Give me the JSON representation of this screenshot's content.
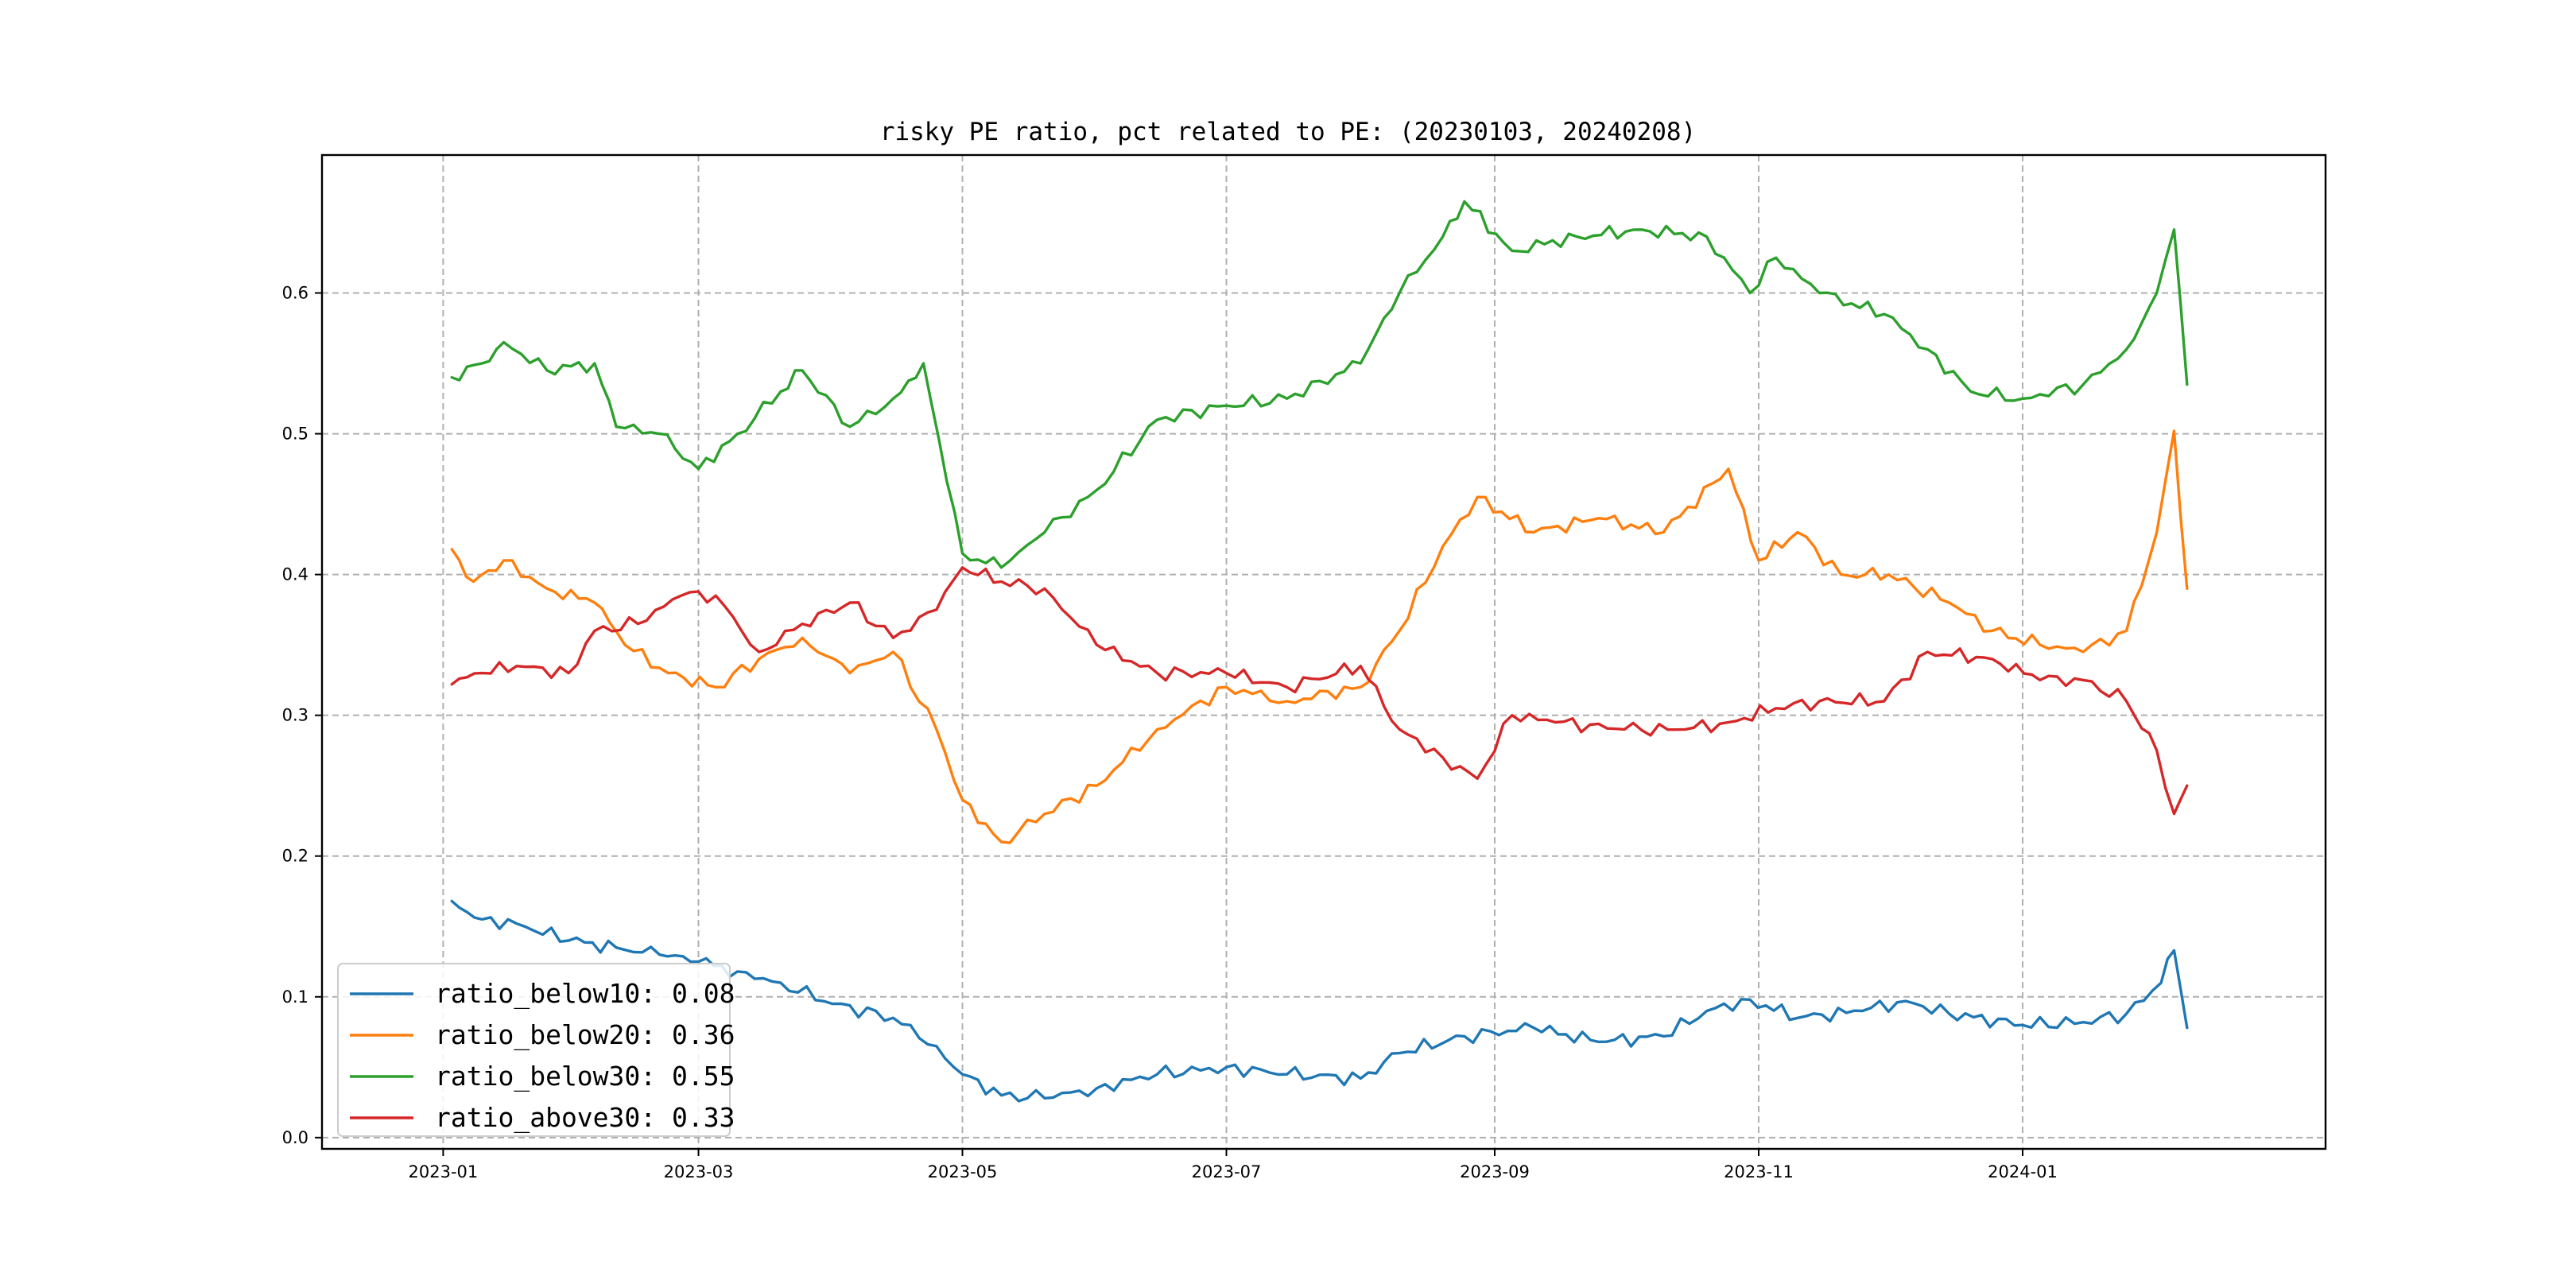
{
  "chart_data": {
    "type": "line",
    "title": "risky PE ratio, pct related to PE: (20230103, 20240208)",
    "xlabel": "",
    "ylabel": "",
    "xlim": [
      "2022-12-04",
      "2024-03-11"
    ],
    "ylim": [
      -0.008,
      0.698
    ],
    "grid": true,
    "legend_position": "lower-left",
    "x_ticks": [
      "2023-01",
      "2023-03",
      "2023-05",
      "2023-07",
      "2023-09",
      "2023-11",
      "2024-01"
    ],
    "y_ticks": [
      "0.0",
      "0.1",
      "0.2",
      "0.3",
      "0.4",
      "0.5",
      "0.6"
    ],
    "series": [
      {
        "name": "ratio_below10",
        "legend": "ratio_below10: 0.08",
        "color": "#1f77b4",
        "points": [
          [
            "2023-01-03",
            0.168
          ],
          [
            "2023-01-10",
            0.155
          ],
          [
            "2023-01-18",
            0.152
          ],
          [
            "2023-01-30",
            0.14
          ],
          [
            "2023-02-10",
            0.135
          ],
          [
            "2023-02-20",
            0.13
          ],
          [
            "2023-03-01",
            0.125
          ],
          [
            "2023-03-10",
            0.118
          ],
          [
            "2023-03-20",
            0.11
          ],
          [
            "2023-04-01",
            0.095
          ],
          [
            "2023-04-15",
            0.085
          ],
          [
            "2023-04-25",
            0.065
          ],
          [
            "2023-05-01",
            0.045
          ],
          [
            "2023-05-10",
            0.03
          ],
          [
            "2023-05-20",
            0.028
          ],
          [
            "2023-06-01",
            0.035
          ],
          [
            "2023-06-15",
            0.045
          ],
          [
            "2023-07-01",
            0.05
          ],
          [
            "2023-07-15",
            0.045
          ],
          [
            "2023-08-01",
            0.042
          ],
          [
            "2023-08-10",
            0.06
          ],
          [
            "2023-08-25",
            0.072
          ],
          [
            "2023-09-10",
            0.078
          ],
          [
            "2023-09-25",
            0.068
          ],
          [
            "2023-10-10",
            0.072
          ],
          [
            "2023-10-20",
            0.09
          ],
          [
            "2023-10-30",
            0.098
          ],
          [
            "2023-11-10",
            0.085
          ],
          [
            "2023-11-25",
            0.09
          ],
          [
            "2023-12-05",
            0.097
          ],
          [
            "2023-12-15",
            0.088
          ],
          [
            "2024-01-01",
            0.08
          ],
          [
            "2024-01-15",
            0.082
          ],
          [
            "2024-01-25",
            0.088
          ],
          [
            "2024-02-02",
            0.11
          ],
          [
            "2024-02-05",
            0.133
          ],
          [
            "2024-02-08",
            0.078
          ]
        ]
      },
      {
        "name": "ratio_below20",
        "legend": "ratio_below20: 0.36",
        "color": "#ff7f0e",
        "points": [
          [
            "2023-01-03",
            0.418
          ],
          [
            "2023-01-08",
            0.395
          ],
          [
            "2023-01-15",
            0.41
          ],
          [
            "2023-01-25",
            0.39
          ],
          [
            "2023-02-05",
            0.38
          ],
          [
            "2023-02-12",
            0.35
          ],
          [
            "2023-02-22",
            0.33
          ],
          [
            "2023-03-05",
            0.32
          ],
          [
            "2023-03-15",
            0.34
          ],
          [
            "2023-03-25",
            0.355
          ],
          [
            "2023-04-05",
            0.33
          ],
          [
            "2023-04-15",
            0.345
          ],
          [
            "2023-04-25",
            0.29
          ],
          [
            "2023-05-01",
            0.24
          ],
          [
            "2023-05-10",
            0.21
          ],
          [
            "2023-05-20",
            0.23
          ],
          [
            "2023-06-01",
            0.25
          ],
          [
            "2023-06-15",
            0.29
          ],
          [
            "2023-07-01",
            0.32
          ],
          [
            "2023-07-15",
            0.31
          ],
          [
            "2023-08-01",
            0.32
          ],
          [
            "2023-08-10",
            0.36
          ],
          [
            "2023-08-20",
            0.42
          ],
          [
            "2023-08-28",
            0.455
          ],
          [
            "2023-09-10",
            0.43
          ],
          [
            "2023-09-25",
            0.44
          ],
          [
            "2023-10-10",
            0.43
          ],
          [
            "2023-10-25",
            0.475
          ],
          [
            "2023-11-01",
            0.41
          ],
          [
            "2023-11-10",
            0.43
          ],
          [
            "2023-11-20",
            0.4
          ],
          [
            "2023-12-01",
            0.4
          ],
          [
            "2023-12-15",
            0.38
          ],
          [
            "2023-12-25",
            0.36
          ],
          [
            "2024-01-05",
            0.35
          ],
          [
            "2024-01-15",
            0.345
          ],
          [
            "2024-01-25",
            0.36
          ],
          [
            "2024-02-01",
            0.43
          ],
          [
            "2024-02-05",
            0.502
          ],
          [
            "2024-02-08",
            0.39
          ]
        ]
      },
      {
        "name": "ratio_below30",
        "legend": "ratio_below30: 0.55",
        "color": "#2ca02c",
        "points": [
          [
            "2023-01-03",
            0.54
          ],
          [
            "2023-01-10",
            0.55
          ],
          [
            "2023-01-15",
            0.565
          ],
          [
            "2023-01-25",
            0.545
          ],
          [
            "2023-02-05",
            0.55
          ],
          [
            "2023-02-10",
            0.505
          ],
          [
            "2023-02-20",
            0.5
          ],
          [
            "2023-03-01",
            0.475
          ],
          [
            "2023-03-10",
            0.5
          ],
          [
            "2023-03-20",
            0.53
          ],
          [
            "2023-03-25",
            0.545
          ],
          [
            "2023-04-05",
            0.505
          ],
          [
            "2023-04-15",
            0.525
          ],
          [
            "2023-04-22",
            0.55
          ],
          [
            "2023-05-01",
            0.415
          ],
          [
            "2023-05-10",
            0.405
          ],
          [
            "2023-05-20",
            0.43
          ],
          [
            "2023-06-01",
            0.46
          ],
          [
            "2023-06-15",
            0.51
          ],
          [
            "2023-07-01",
            0.52
          ],
          [
            "2023-07-15",
            0.525
          ],
          [
            "2023-08-01",
            0.55
          ],
          [
            "2023-08-10",
            0.6
          ],
          [
            "2023-08-20",
            0.64
          ],
          [
            "2023-08-25",
            0.665
          ],
          [
            "2023-09-05",
            0.63
          ],
          [
            "2023-09-20",
            0.64
          ],
          [
            "2023-10-05",
            0.645
          ],
          [
            "2023-10-20",
            0.64
          ],
          [
            "2023-10-30",
            0.6
          ],
          [
            "2023-11-05",
            0.625
          ],
          [
            "2023-11-15",
            0.6
          ],
          [
            "2023-11-30",
            0.585
          ],
          [
            "2023-12-10",
            0.56
          ],
          [
            "2023-12-20",
            0.53
          ],
          [
            "2024-01-01",
            0.525
          ],
          [
            "2024-01-15",
            0.535
          ],
          [
            "2024-01-25",
            0.56
          ],
          [
            "2024-02-01",
            0.6
          ],
          [
            "2024-02-05",
            0.645
          ],
          [
            "2024-02-08",
            0.535
          ]
        ]
      },
      {
        "name": "ratio_above30",
        "legend": "ratio_above30: 0.33",
        "color": "#d62728",
        "points": [
          [
            "2023-01-03",
            0.322
          ],
          [
            "2023-01-10",
            0.33
          ],
          [
            "2023-01-18",
            0.335
          ],
          [
            "2023-01-30",
            0.33
          ],
          [
            "2023-02-05",
            0.36
          ],
          [
            "2023-02-15",
            0.365
          ],
          [
            "2023-02-25",
            0.385
          ],
          [
            "2023-03-05",
            0.385
          ],
          [
            "2023-03-15",
            0.345
          ],
          [
            "2023-03-25",
            0.365
          ],
          [
            "2023-04-05",
            0.38
          ],
          [
            "2023-04-15",
            0.355
          ],
          [
            "2023-04-25",
            0.375
          ],
          [
            "2023-05-01",
            0.405
          ],
          [
            "2023-05-10",
            0.395
          ],
          [
            "2023-05-20",
            0.39
          ],
          [
            "2023-06-01",
            0.35
          ],
          [
            "2023-06-15",
            0.33
          ],
          [
            "2023-07-01",
            0.33
          ],
          [
            "2023-07-15",
            0.32
          ],
          [
            "2023-08-01",
            0.335
          ],
          [
            "2023-08-10",
            0.29
          ],
          [
            "2023-08-20",
            0.27
          ],
          [
            "2023-08-28",
            0.255
          ],
          [
            "2023-09-05",
            0.3
          ],
          [
            "2023-09-15",
            0.295
          ],
          [
            "2023-10-01",
            0.29
          ],
          [
            "2023-10-15",
            0.29
          ],
          [
            "2023-10-25",
            0.295
          ],
          [
            "2023-11-05",
            0.305
          ],
          [
            "2023-11-15",
            0.31
          ],
          [
            "2023-11-30",
            0.31
          ],
          [
            "2023-12-10",
            0.345
          ],
          [
            "2023-12-25",
            0.34
          ],
          [
            "2024-01-05",
            0.325
          ],
          [
            "2024-01-15",
            0.325
          ],
          [
            "2024-01-25",
            0.31
          ],
          [
            "2024-02-01",
            0.275
          ],
          [
            "2024-02-05",
            0.23
          ],
          [
            "2024-02-08",
            0.25
          ]
        ]
      }
    ]
  }
}
